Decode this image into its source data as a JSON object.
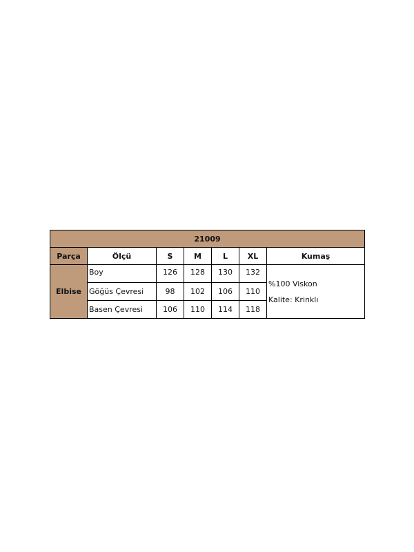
{
  "table": {
    "title": "21009",
    "headers": [
      "Parça",
      "Ölçü",
      "S",
      "M",
      "L",
      "XL",
      "Kumaş"
    ],
    "part": "Elbise",
    "rows": [
      {
        "label": "Boy",
        "values": [
          "126",
          "128",
          "130",
          "132"
        ]
      },
      {
        "label": "Göğüs Çevresi",
        "values": [
          "98",
          "102",
          "106",
          "110"
        ]
      },
      {
        "label": "Basen Çevresi",
        "values": [
          "106",
          "110",
          "114",
          "118"
        ]
      }
    ],
    "fabric": [
      "%100 Viskon",
      "Kalite: Krinklı"
    ],
    "header_color": "#bf9b7c"
  }
}
